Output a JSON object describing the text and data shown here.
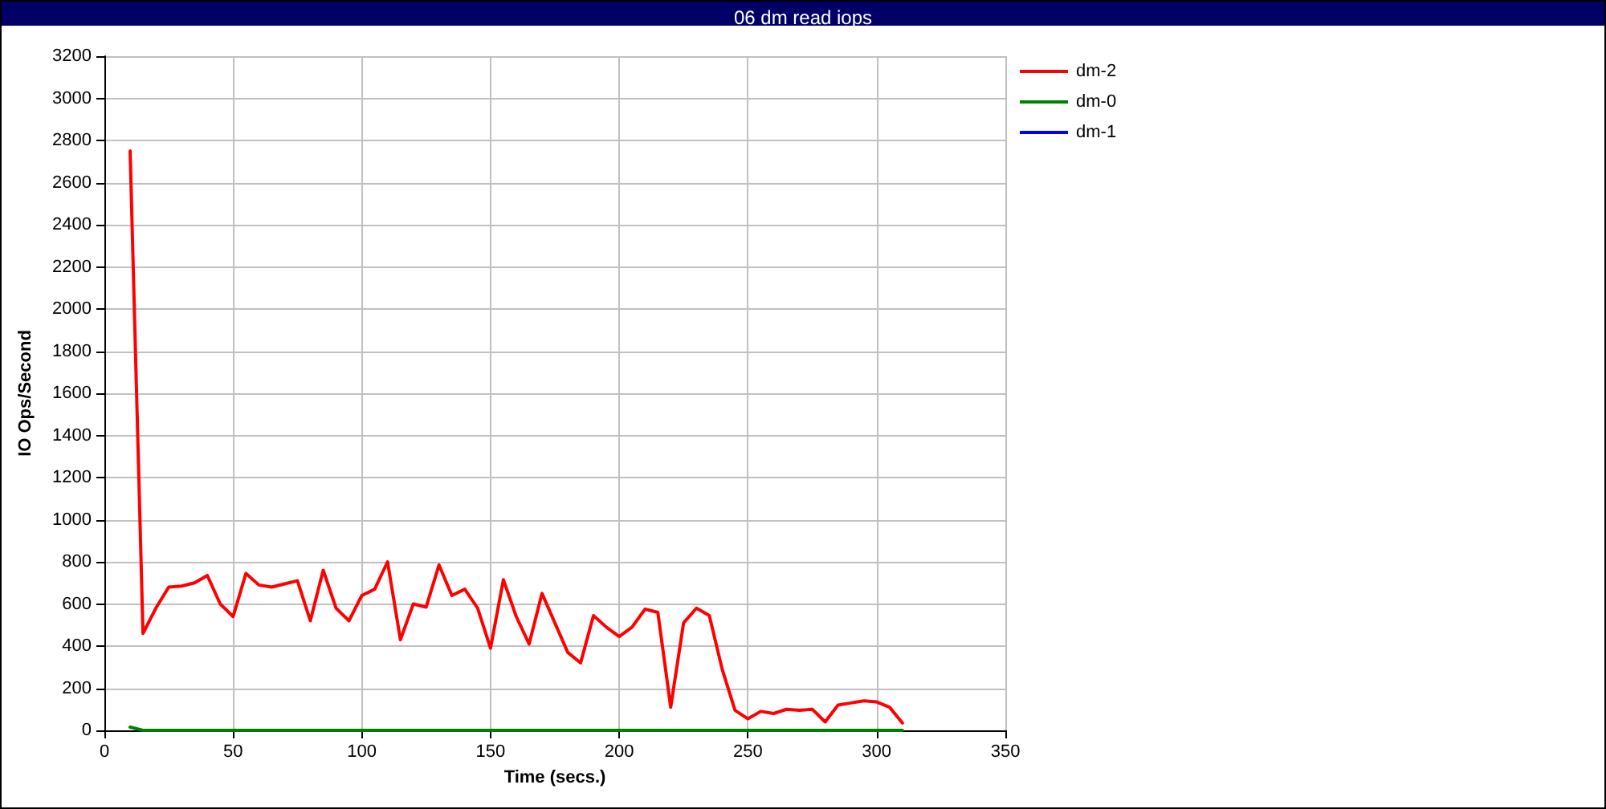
{
  "chart_data": {
    "type": "line",
    "title": "06 dm read iops",
    "xlabel": "Time (secs.)",
    "ylabel": "IO Ops/Second",
    "x": [
      10,
      15,
      20,
      25,
      30,
      35,
      40,
      45,
      50,
      55,
      60,
      65,
      70,
      75,
      80,
      85,
      90,
      95,
      100,
      105,
      110,
      115,
      120,
      125,
      130,
      135,
      140,
      145,
      150,
      155,
      160,
      165,
      170,
      175,
      180,
      185,
      190,
      195,
      200,
      205,
      210,
      215,
      220,
      225,
      230,
      235,
      240,
      245,
      250,
      255,
      260,
      265,
      270,
      275,
      280,
      285,
      290,
      295,
      300,
      305,
      310
    ],
    "series": [
      {
        "name": "dm-2",
        "color": "#ff0000",
        "values": [
          2750,
          460,
          580,
          680,
          685,
          700,
          735,
          600,
          540,
          745,
          690,
          680,
          695,
          710,
          520,
          760,
          580,
          520,
          640,
          670,
          800,
          430,
          600,
          585,
          785,
          640,
          670,
          580,
          390,
          715,
          540,
          410,
          650,
          510,
          370,
          320,
          545,
          490,
          445,
          490,
          575,
          560,
          110,
          510,
          580,
          545,
          290,
          95,
          55,
          90,
          80,
          100,
          95,
          100,
          40,
          120,
          130,
          140,
          135,
          110,
          35
        ]
      },
      {
        "name": "dm-0",
        "color": "#008000",
        "values": [
          15,
          0,
          0,
          0,
          0,
          0,
          0,
          0,
          0,
          0,
          0,
          0,
          0,
          0,
          0,
          0,
          0,
          0,
          0,
          0,
          0,
          0,
          0,
          0,
          0,
          0,
          0,
          0,
          0,
          0,
          0,
          0,
          0,
          0,
          0,
          0,
          0,
          0,
          0,
          0,
          0,
          0,
          0,
          0,
          0,
          0,
          0,
          0,
          0,
          0,
          0,
          0,
          0,
          0,
          0,
          0,
          0,
          0,
          0,
          0,
          0
        ]
      },
      {
        "name": "dm-1",
        "color": "#0000ff",
        "values": [
          null,
          null,
          null,
          null,
          null,
          null,
          null,
          null,
          null,
          null,
          null,
          null,
          null,
          null,
          null,
          null,
          null,
          null,
          null,
          null,
          null,
          null,
          null,
          null,
          null,
          null,
          null,
          null,
          null,
          null,
          null,
          null,
          null,
          null,
          null,
          null,
          null,
          null,
          null,
          null,
          null,
          null,
          null,
          null,
          null,
          null,
          null,
          null,
          null,
          null,
          null,
          null,
          null,
          null,
          null,
          null,
          null,
          null,
          null,
          null,
          null
        ]
      }
    ],
    "xlim": [
      0,
      350
    ],
    "xticks": [
      0,
      50,
      100,
      150,
      200,
      250,
      300,
      350
    ],
    "ylim": [
      0,
      3200
    ],
    "yticks": [
      0,
      200,
      400,
      600,
      800,
      1000,
      1200,
      1400,
      1600,
      1800,
      2000,
      2200,
      2400,
      2600,
      2800,
      3000,
      3200
    ],
    "grid": true,
    "legend": "right",
    "marker": "none",
    "line_style": "solid"
  }
}
